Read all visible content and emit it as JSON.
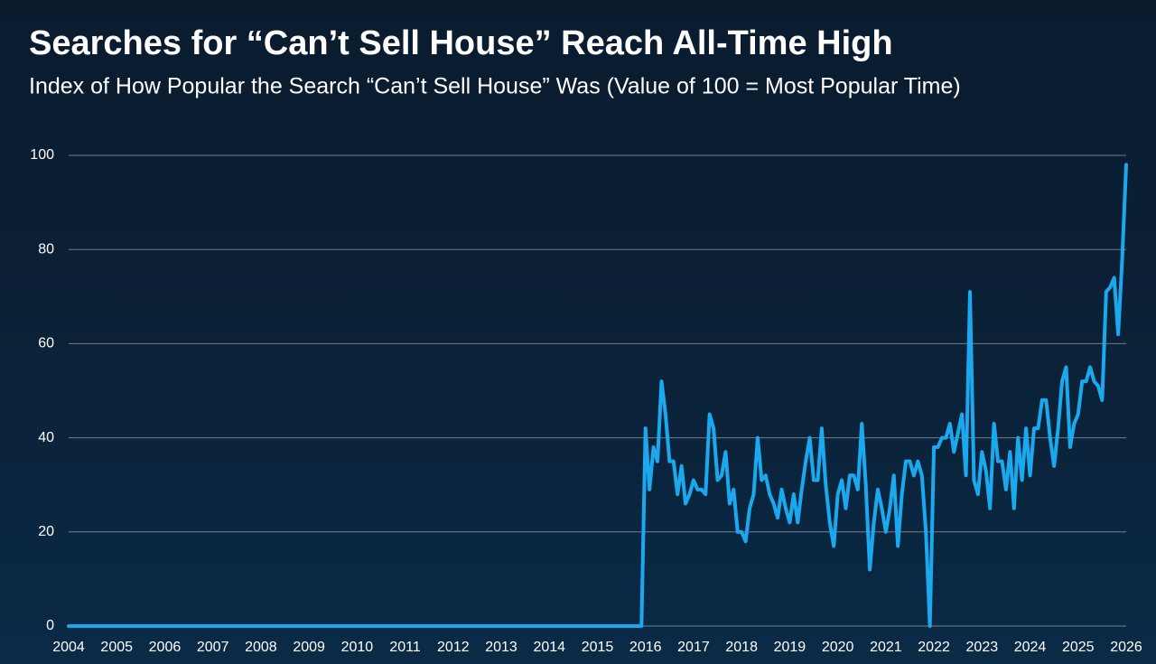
{
  "chart_data": {
    "type": "line",
    "title": "Searches for “Can’t Sell House” Reach All-Time High",
    "subtitle": "Index of How Popular the Search “Can’t Sell House” Was (Value of 100 = Most Popular Time)",
    "categories": [
      "2004",
      null,
      null,
      null,
      null,
      null,
      null,
      null,
      null,
      null,
      null,
      null,
      "2005",
      null,
      null,
      null,
      null,
      null,
      null,
      null,
      null,
      null,
      null,
      null,
      "2006",
      null,
      null,
      null,
      null,
      null,
      null,
      null,
      null,
      null,
      null,
      null,
      "2007",
      null,
      null,
      null,
      null,
      null,
      null,
      null,
      null,
      null,
      null,
      null,
      "2008",
      null,
      null,
      null,
      null,
      null,
      null,
      null,
      null,
      null,
      null,
      null,
      "2009",
      null,
      null,
      null,
      null,
      null,
      null,
      null,
      null,
      null,
      null,
      null,
      "2010",
      null,
      null,
      null,
      null,
      null,
      null,
      null,
      null,
      null,
      null,
      null,
      "2011",
      null,
      null,
      null,
      null,
      null,
      null,
      null,
      null,
      null,
      null,
      null,
      "2012",
      null,
      null,
      null,
      null,
      null,
      null,
      null,
      null,
      null,
      null,
      null,
      "2013",
      null,
      null,
      null,
      null,
      null,
      null,
      null,
      null,
      null,
      null,
      null,
      "2014",
      null,
      null,
      null,
      null,
      null,
      null,
      null,
      null,
      null,
      null,
      null,
      "2015",
      null,
      null,
      null,
      null,
      null,
      null,
      null,
      null,
      null,
      null,
      null,
      "2016",
      null,
      null,
      null,
      null,
      null,
      null,
      null,
      null,
      null,
      null,
      null,
      "2017",
      null,
      null,
      null,
      null,
      null,
      null,
      null,
      null,
      null,
      null,
      null,
      "2018",
      null,
      null,
      null,
      null,
      null,
      null,
      null,
      null,
      null,
      null,
      null,
      "2019",
      null,
      null,
      null,
      null,
      null,
      null,
      null,
      null,
      null,
      null,
      null,
      "2020",
      null,
      null,
      null,
      null,
      null,
      null,
      null,
      null,
      null,
      null,
      null,
      "2021",
      null,
      null,
      null,
      null,
      null,
      null,
      null,
      null,
      null,
      null,
      null,
      "2022",
      null,
      null,
      null,
      null,
      null,
      null,
      null,
      null,
      null,
      null,
      null,
      "2023",
      null,
      null,
      null,
      null,
      null,
      null,
      null,
      null,
      null,
      null,
      null,
      "2024",
      null,
      null,
      null,
      null,
      null,
      null,
      null,
      null,
      null,
      null,
      null,
      "2025",
      null,
      null,
      null,
      null,
      null,
      null,
      null,
      null,
      null,
      null,
      null,
      "2026"
    ],
    "values": [
      0,
      0,
      0,
      0,
      0,
      0,
      0,
      0,
      0,
      0,
      0,
      0,
      0,
      0,
      0,
      0,
      0,
      0,
      0,
      0,
      0,
      0,
      0,
      0,
      0,
      0,
      0,
      0,
      0,
      0,
      0,
      0,
      0,
      0,
      0,
      0,
      0,
      0,
      0,
      0,
      0,
      0,
      0,
      0,
      0,
      0,
      0,
      0,
      0,
      0,
      0,
      0,
      0,
      0,
      0,
      0,
      0,
      0,
      0,
      0,
      0,
      0,
      0,
      0,
      0,
      0,
      0,
      0,
      0,
      0,
      0,
      0,
      0,
      0,
      0,
      0,
      0,
      0,
      0,
      0,
      0,
      0,
      0,
      0,
      0,
      0,
      0,
      0,
      0,
      0,
      0,
      0,
      0,
      0,
      0,
      0,
      0,
      0,
      0,
      0,
      0,
      0,
      0,
      0,
      0,
      0,
      0,
      0,
      0,
      0,
      0,
      0,
      0,
      0,
      0,
      0,
      0,
      0,
      0,
      0,
      0,
      0,
      0,
      0,
      0,
      0,
      0,
      0,
      0,
      0,
      0,
      0,
      0,
      0,
      0,
      0,
      0,
      0,
      0,
      0,
      0,
      0,
      0,
      0,
      42,
      29,
      38,
      35,
      52,
      45,
      35,
      35,
      28,
      34,
      26,
      28,
      31,
      29,
      29,
      28,
      45,
      42,
      31,
      32,
      37,
      26,
      29,
      20,
      20,
      18,
      25,
      28,
      40,
      31,
      32,
      28,
      26,
      23,
      29,
      25,
      22,
      28,
      22,
      29,
      35,
      40,
      31,
      31,
      42,
      30,
      22,
      17,
      28,
      31,
      25,
      32,
      32,
      29,
      43,
      30,
      12,
      22,
      29,
      25,
      20,
      25,
      32,
      17,
      28,
      35,
      35,
      32,
      35,
      32,
      20,
      0,
      38,
      38,
      40,
      40,
      43,
      37,
      41,
      45,
      32,
      71,
      31,
      28,
      37,
      33,
      25,
      43,
      35,
      35,
      29,
      37,
      25,
      40,
      31,
      42,
      32,
      42,
      42,
      48,
      48,
      40,
      34,
      42,
      52,
      55,
      38,
      43,
      45,
      52,
      52,
      55,
      52,
      51,
      48,
      71,
      72,
      74,
      62,
      78,
      98
    ],
    "color": "#1aa9ee",
    "ylim": [
      0,
      100
    ],
    "yticks": [
      0,
      20,
      40,
      60,
      80,
      100
    ],
    "grid": true
  }
}
